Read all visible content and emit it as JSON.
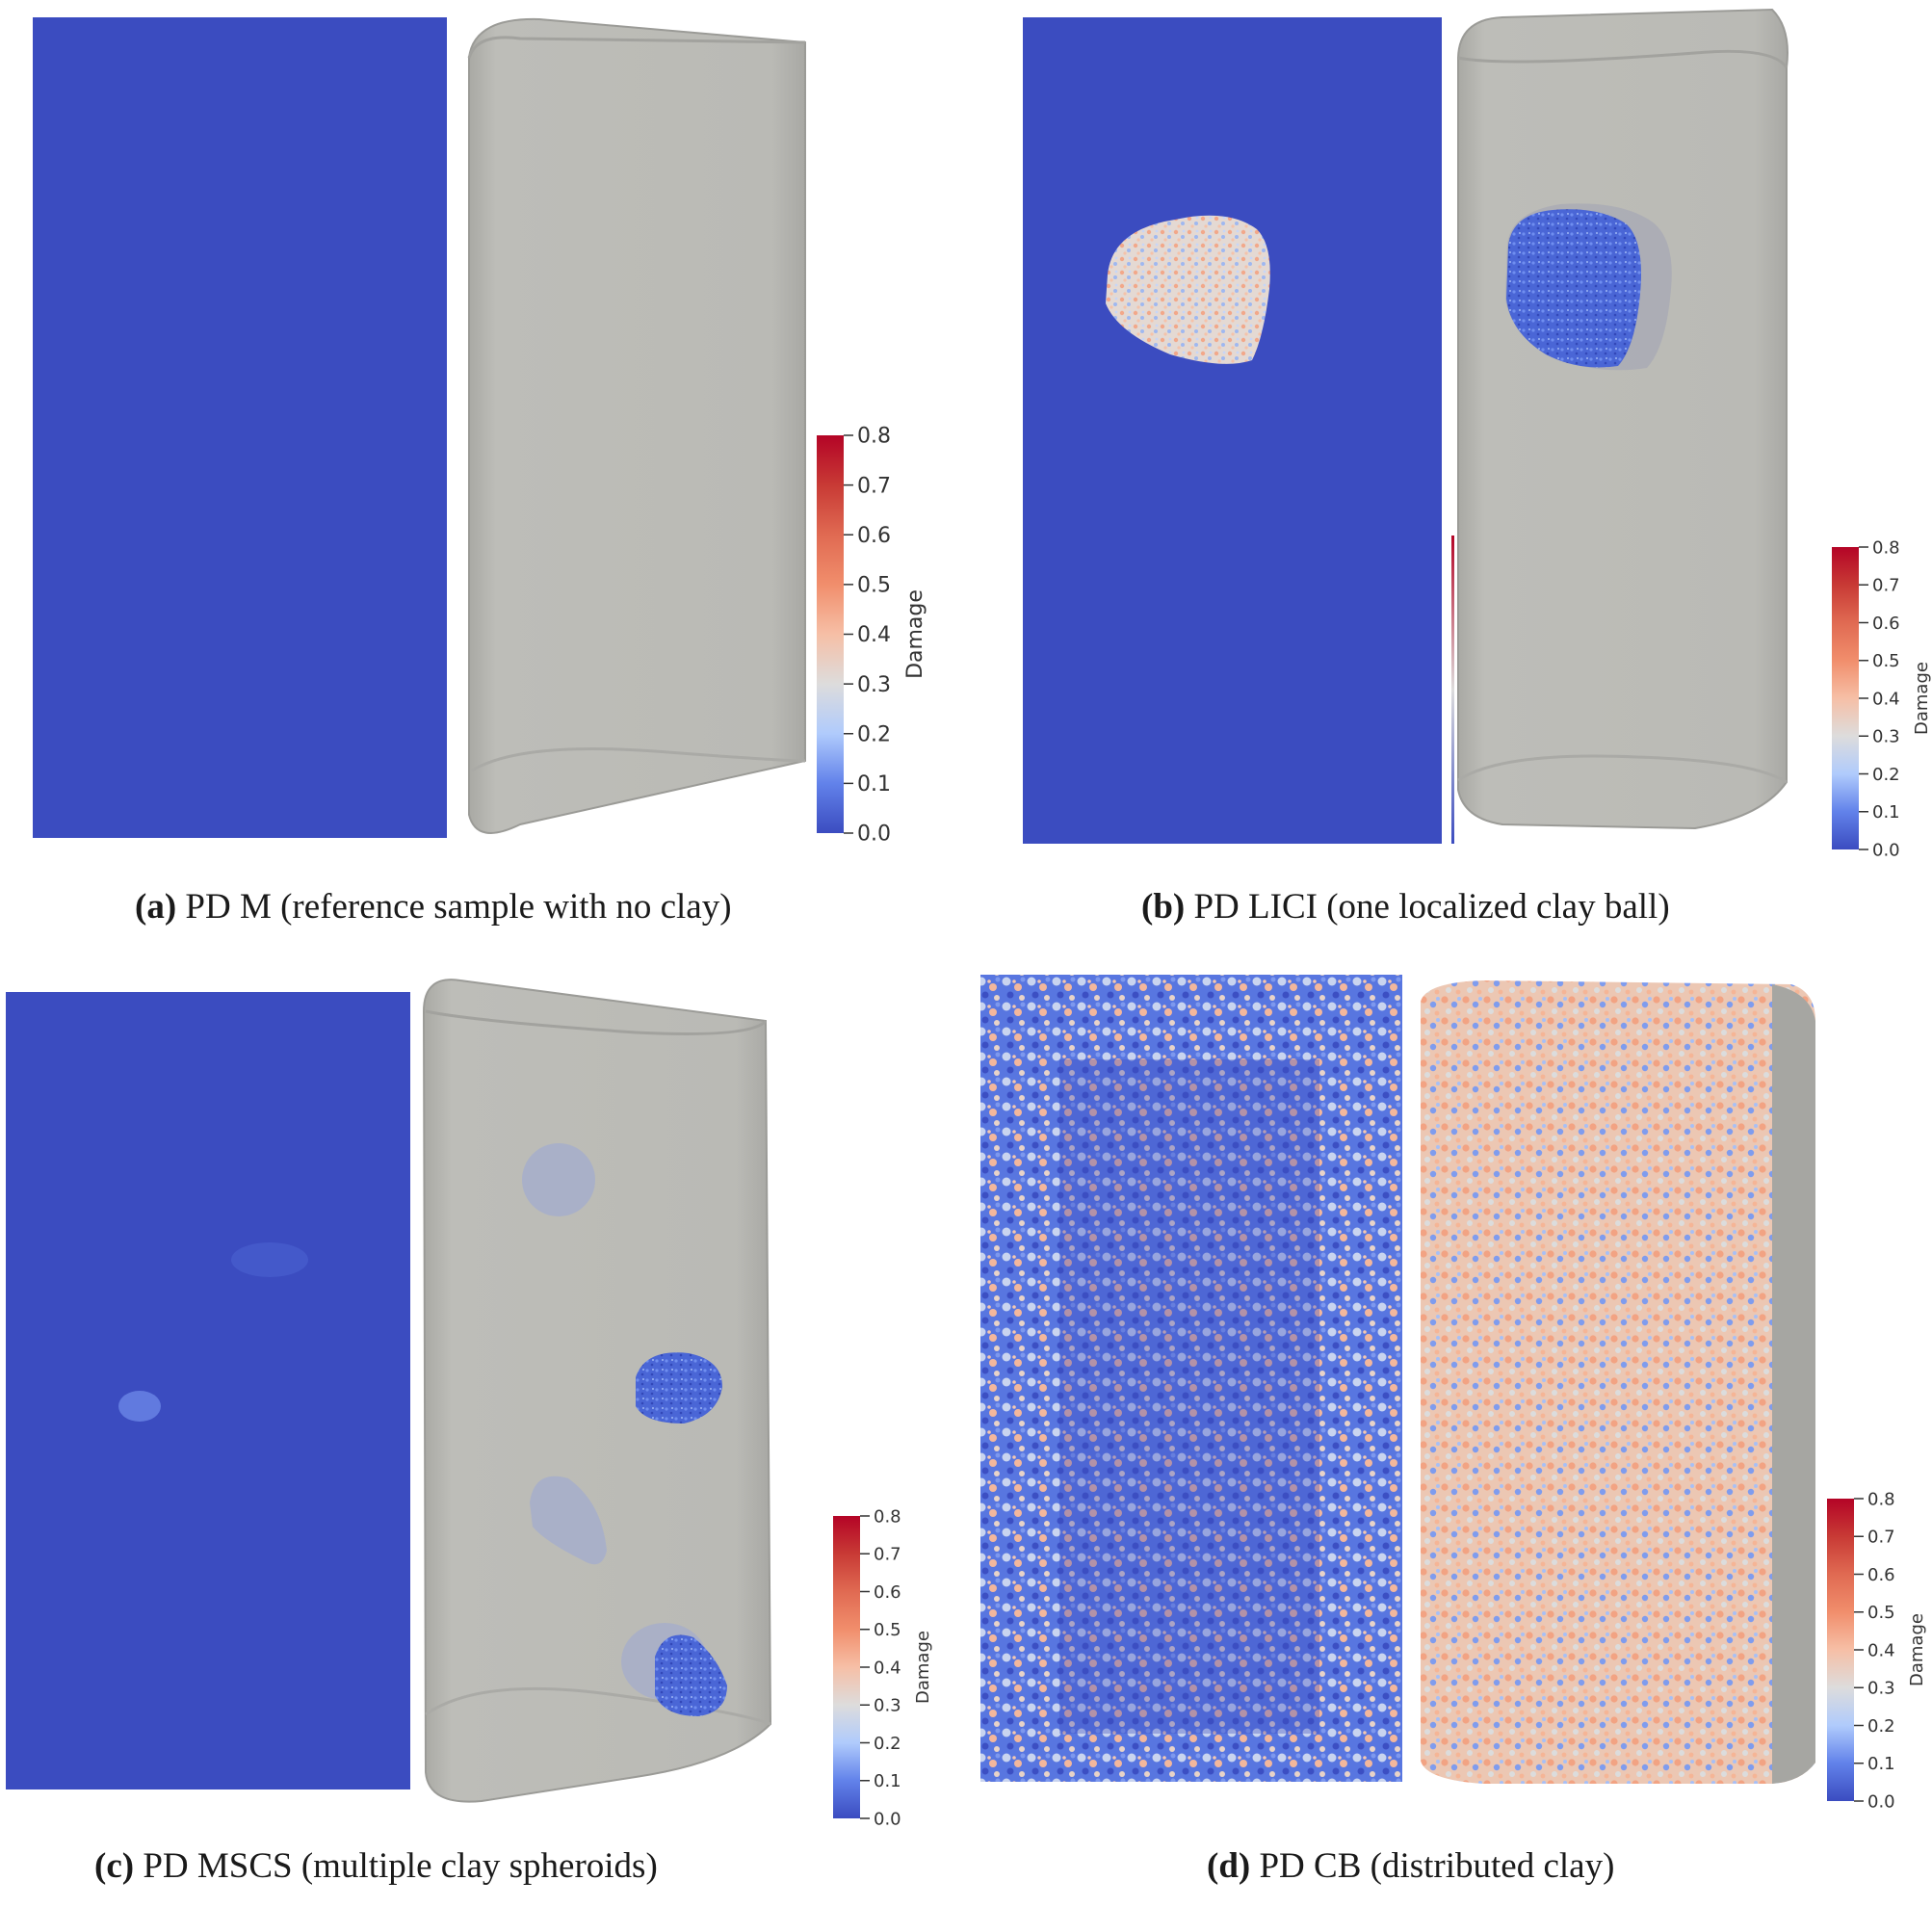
{
  "colorbar": {
    "title": "Damage",
    "ticks": [
      "0.0",
      "0.1",
      "0.2",
      "0.3",
      "0.4",
      "0.5",
      "0.6",
      "0.7",
      "0.8"
    ],
    "colors": [
      "#3b4cc0",
      "#7396f5",
      "#b0cbfc",
      "#dddcdc",
      "#f6bfa6",
      "#f18e6c",
      "#d65244",
      "#b40426"
    ]
  },
  "colors": {
    "matrix_blue": "#3b4cc0",
    "shell_gray": "#b9b9b4",
    "shell_edge": "#9a9a96"
  },
  "panels": [
    {
      "id": "a",
      "label": "(a)",
      "text": " PD M (reference sample with no clay)"
    },
    {
      "id": "b",
      "label": "(b)",
      "text": " PD LICI (one localized clay ball)"
    },
    {
      "id": "c",
      "label": "(c)",
      "text": " PD MSCS (multiple clay spheroids)"
    },
    {
      "id": "d",
      "label": "(d)",
      "text": " PD CB (distributed clay)"
    }
  ]
}
